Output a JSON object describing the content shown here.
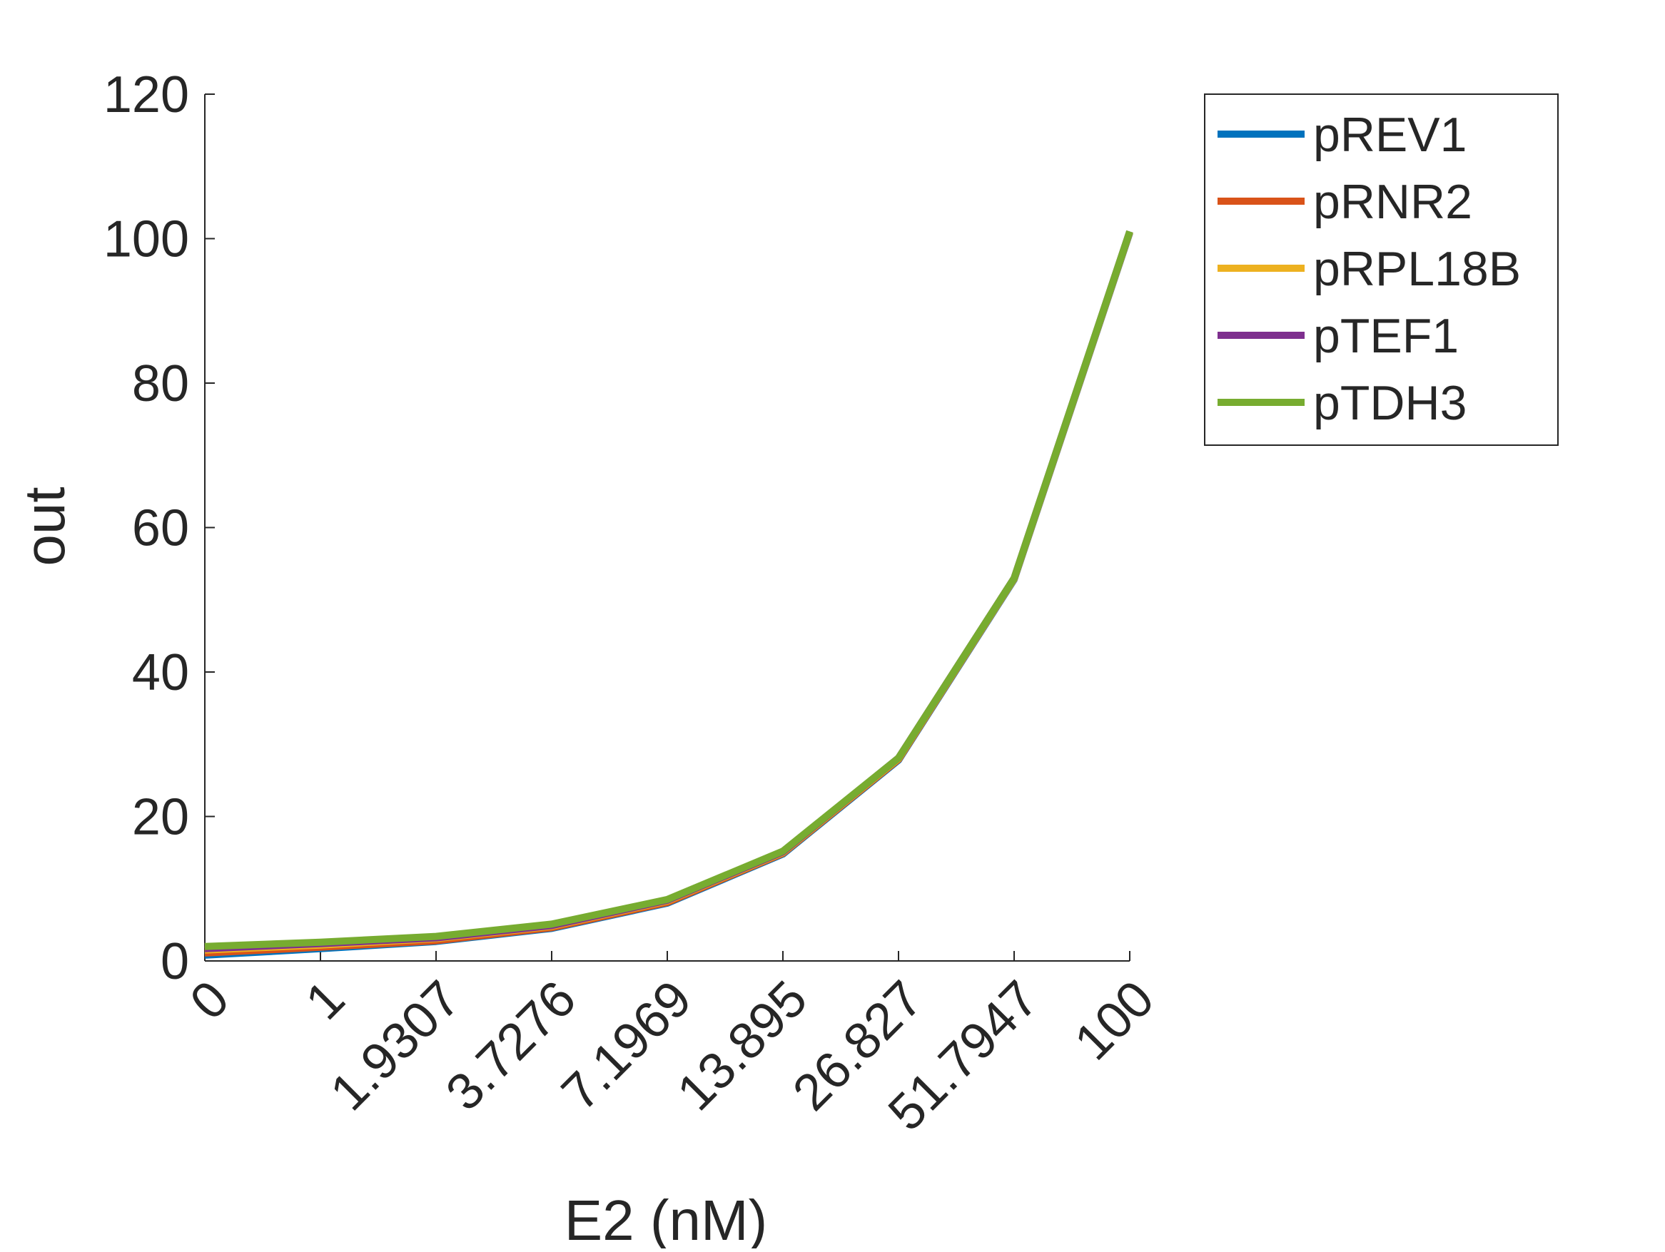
{
  "chart_data": {
    "type": "line",
    "xlabel": "E2 (nM)",
    "ylabel": "out",
    "categories": [
      "0",
      "1",
      "1.9307",
      "3.7276",
      "7.1969",
      "13.895",
      "26.827",
      "51.7947",
      "100"
    ],
    "ylim": [
      0,
      120
    ],
    "yticks": [
      0,
      20,
      40,
      60,
      80,
      100,
      120
    ],
    "grid": false,
    "legend_position": "top-right",
    "series": [
      {
        "name": "pREV1",
        "color": "#0072BD",
        "values": [
          0.8,
          1.7,
          2.7,
          4.5,
          8.0,
          14.8,
          27.8,
          52.8,
          100.8
        ]
      },
      {
        "name": "pRNR2",
        "color": "#D95319",
        "values": [
          1.1,
          1.9,
          2.8,
          4.6,
          8.1,
          14.9,
          27.9,
          52.9,
          100.9
        ]
      },
      {
        "name": "pRPL18B",
        "color": "#EDB120",
        "values": [
          1.5,
          2.2,
          3.1,
          4.8,
          8.3,
          15.0,
          28.0,
          52.9,
          100.9
        ]
      },
      {
        "name": "pTEF1",
        "color": "#7E2F8E",
        "values": [
          1.7,
          2.4,
          3.2,
          4.9,
          8.4,
          15.1,
          28.1,
          53.0,
          101.0
        ]
      },
      {
        "name": "pTDH3",
        "color": "#77AC30",
        "values": [
          2.0,
          2.6,
          3.4,
          5.1,
          8.5,
          15.2,
          28.1,
          53.0,
          101.0
        ]
      }
    ]
  }
}
